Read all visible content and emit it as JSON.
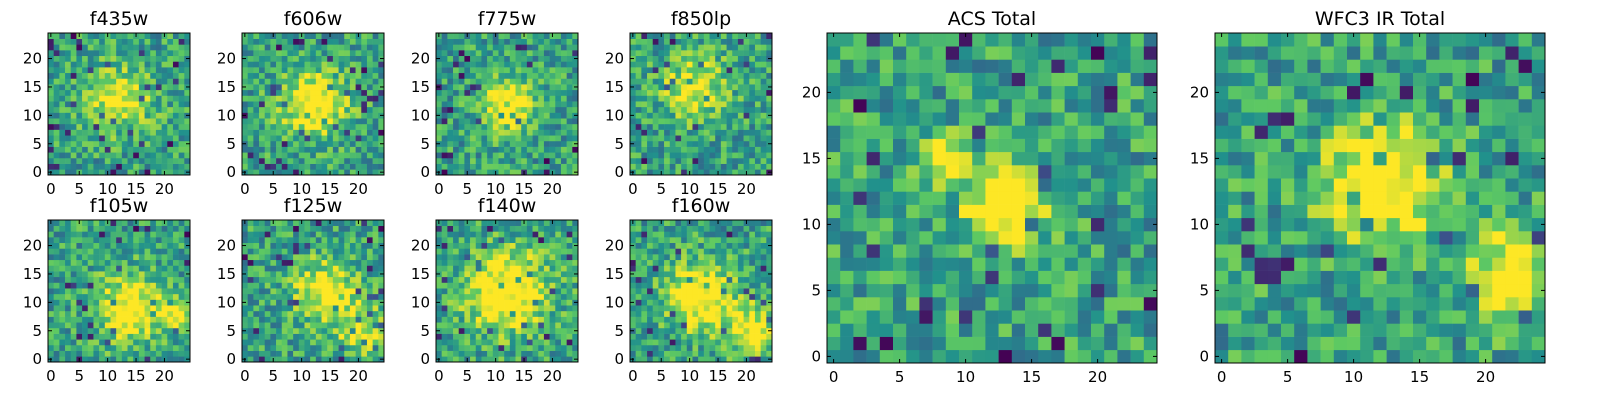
{
  "palette": [
    "#440154",
    "#3b528b",
    "#21918c",
    "#5ec962",
    "#fde725"
  ],
  "chart_data": [
    {
      "type": "heatmap",
      "title": "f435w",
      "xlim": [
        0,
        24
      ],
      "ylim": [
        0,
        24
      ],
      "xticks": [
        "0",
        "5",
        "10",
        "15",
        "20"
      ],
      "yticks": [
        "0",
        "5",
        "10",
        "15",
        "20"
      ],
      "colormap": "viridis",
      "seed": 11,
      "blobs": [
        [
          12,
          13,
          4,
          0.4
        ]
      ]
    },
    {
      "type": "heatmap",
      "title": "f606w",
      "xlim": [
        0,
        24
      ],
      "ylim": [
        0,
        24
      ],
      "xticks": [
        "0",
        "5",
        "10",
        "15",
        "20"
      ],
      "yticks": [
        "0",
        "5",
        "10",
        "15",
        "20"
      ],
      "colormap": "viridis",
      "seed": 23,
      "blobs": [
        [
          12,
          12,
          4,
          0.55
        ]
      ]
    },
    {
      "type": "heatmap",
      "title": "f775w",
      "xlim": [
        0,
        24
      ],
      "ylim": [
        0,
        24
      ],
      "xticks": [
        "0",
        "5",
        "10",
        "15",
        "20"
      ],
      "yticks": [
        "0",
        "5",
        "10",
        "15",
        "20"
      ],
      "colormap": "viridis",
      "seed": 37,
      "blobs": [
        [
          12,
          12,
          3,
          0.6
        ]
      ]
    },
    {
      "type": "heatmap",
      "title": "f850lp",
      "xlim": [
        0,
        24
      ],
      "ylim": [
        0,
        24
      ],
      "xticks": [
        "0",
        "5",
        "10",
        "15",
        "20"
      ],
      "yticks": [
        "0",
        "5",
        "10",
        "15",
        "20"
      ],
      "colormap": "viridis",
      "seed": 41,
      "blobs": [
        [
          11,
          15,
          4,
          0.4
        ]
      ]
    },
    {
      "type": "heatmap",
      "title": "f105w",
      "xlim": [
        0,
        24
      ],
      "ylim": [
        0,
        24
      ],
      "xticks": [
        "0",
        "5",
        "10",
        "15",
        "20"
      ],
      "yticks": [
        "0",
        "5",
        "10",
        "15",
        "20"
      ],
      "colormap": "viridis",
      "seed": 53,
      "blobs": [
        [
          14,
          9,
          4,
          0.55
        ],
        [
          22,
          8,
          2,
          0.4
        ]
      ]
    },
    {
      "type": "heatmap",
      "title": "f125w",
      "xlim": [
        0,
        24
      ],
      "ylim": [
        0,
        24
      ],
      "xticks": [
        "0",
        "5",
        "10",
        "15",
        "20"
      ],
      "yticks": [
        "0",
        "5",
        "10",
        "15",
        "20"
      ],
      "colormap": "viridis",
      "seed": 67,
      "blobs": [
        [
          14,
          12,
          4,
          0.45
        ],
        [
          21,
          5,
          3,
          0.4
        ]
      ]
    },
    {
      "type": "heatmap",
      "title": "f140w",
      "xlim": [
        0,
        24
      ],
      "ylim": [
        0,
        24
      ],
      "xticks": [
        "0",
        "5",
        "10",
        "15",
        "20"
      ],
      "yticks": [
        "0",
        "5",
        "10",
        "15",
        "20"
      ],
      "colormap": "viridis",
      "seed": 71,
      "blobs": [
        [
          12,
          12,
          5,
          0.6
        ]
      ]
    },
    {
      "type": "heatmap",
      "title": "f160w",
      "xlim": [
        0,
        24
      ],
      "ylim": [
        0,
        24
      ],
      "xticks": [
        "0",
        "5",
        "10",
        "15",
        "20"
      ],
      "yticks": [
        "0",
        "5",
        "10",
        "15",
        "20"
      ],
      "colormap": "viridis",
      "seed": 83,
      "blobs": [
        [
          12,
          11,
          4,
          0.6
        ],
        [
          21,
          5,
          3,
          0.5
        ]
      ]
    },
    {
      "type": "heatmap",
      "title": "ACS Total",
      "xlim": [
        0,
        24
      ],
      "ylim": [
        0,
        24
      ],
      "xticks": [
        "0",
        "5",
        "10",
        "15",
        "20"
      ],
      "yticks": [
        "0",
        "5",
        "10",
        "15",
        "20"
      ],
      "colormap": "viridis",
      "seed": 97,
      "blobs": [
        [
          13,
          11.5,
          2,
          0.75
        ],
        [
          8.5,
          15,
          1.2,
          0.55
        ]
      ]
    },
    {
      "type": "heatmap",
      "title": "WFC3 IR Total",
      "xlim": [
        0,
        24
      ],
      "ylim": [
        0,
        24
      ],
      "xticks": [
        "0",
        "5",
        "10",
        "15",
        "20"
      ],
      "yticks": [
        "0",
        "5",
        "10",
        "15",
        "20"
      ],
      "colormap": "viridis",
      "seed": 101,
      "blobs": [
        [
          12,
          13,
          3,
          0.65
        ],
        [
          22,
          6,
          2.2,
          0.6
        ]
      ]
    }
  ]
}
